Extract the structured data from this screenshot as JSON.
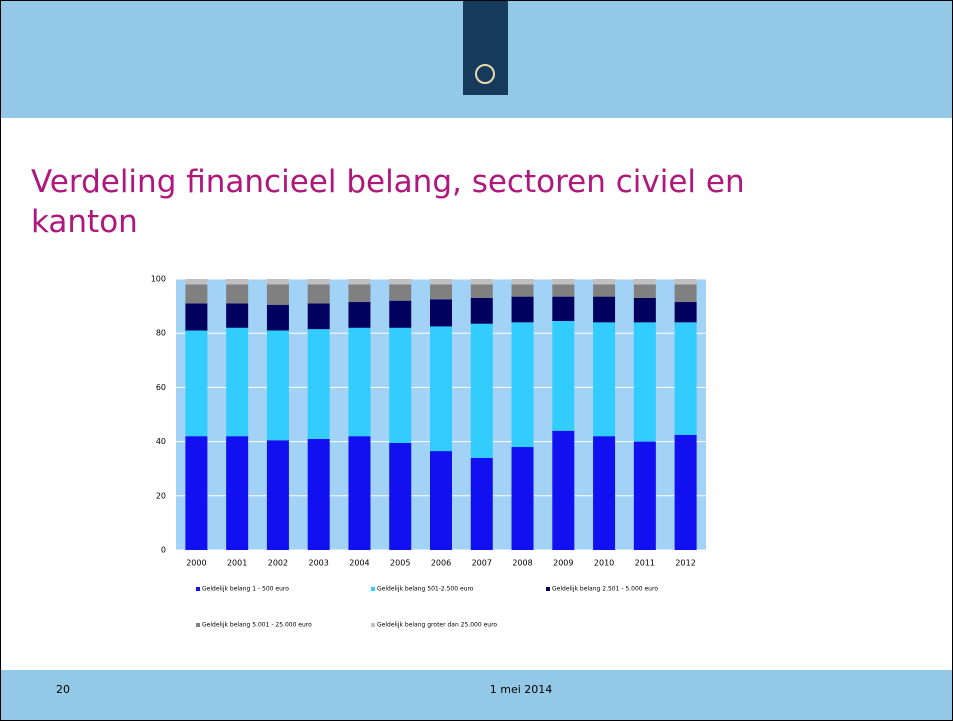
{
  "slide": {
    "title": "Verdeling financieel belang, sectoren civiel en kanton",
    "page_number": "20",
    "date": "1 mei 2014"
  },
  "chart_data": {
    "type": "stacked_bar",
    "categories": [
      "2000",
      "2001",
      "2002",
      "2003",
      "2004",
      "2005",
      "2006",
      "2007",
      "2008",
      "2009",
      "2010",
      "2011",
      "2012"
    ],
    "series": [
      {
        "name": "Geldelijk belang 1 - 500 euro",
        "color": "#1010f0",
        "values": [
          42,
          42,
          40.5,
          41,
          42,
          39.5,
          36.5,
          34,
          38,
          44,
          42,
          40,
          42.5
        ]
      },
      {
        "name": "Geldelijk belang 501-2.500 euro",
        "color": "#33ccff",
        "values": [
          39,
          40,
          40.5,
          40.5,
          40,
          42.5,
          46,
          49.5,
          46,
          40.5,
          42,
          44,
          41.5
        ]
      },
      {
        "name": "Geldelijk belang 2.501 - 5.000 euro",
        "color": "#00005e",
        "values": [
          10,
          9,
          9.5,
          9.5,
          9.5,
          10,
          10,
          9.5,
          9.5,
          9,
          9.5,
          9,
          7.5
        ]
      },
      {
        "name": "Geldelijk belang 5.001 - 25.000 euro",
        "color": "#808080",
        "values": [
          7,
          7,
          7.5,
          7,
          6.5,
          6,
          5.5,
          5,
          4.5,
          4.5,
          4.5,
          5,
          6.5
        ]
      },
      {
        "name": "Geldelijk belang groter dan 25.000 euro",
        "color": "#c0c0c0",
        "values": [
          2,
          2,
          2,
          2,
          2,
          2,
          2,
          2,
          2,
          2,
          2,
          2,
          2
        ]
      }
    ],
    "ylim": [
      0,
      100
    ],
    "yticks": [
      0,
      20,
      40,
      60,
      80,
      100
    ],
    "grid": true
  }
}
